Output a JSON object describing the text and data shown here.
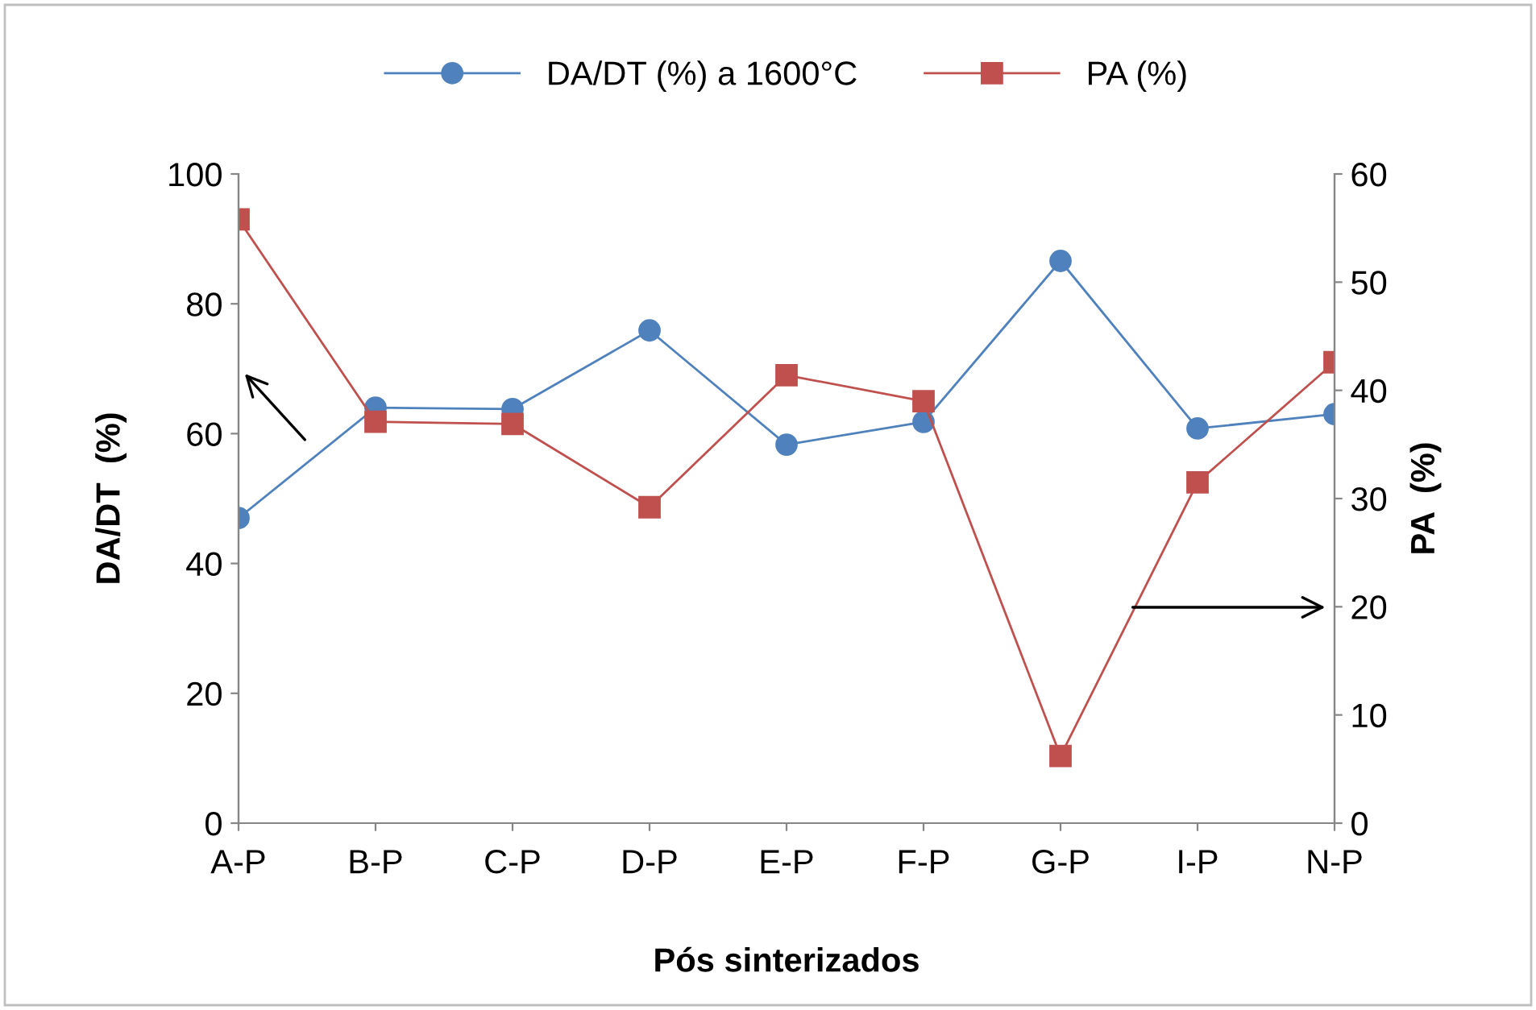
{
  "chart_data": {
    "type": "line",
    "xlabel": "Pós sinterizados",
    "ylabel": "DA/DT  (%)",
    "y2label": "PA  (%)",
    "categories": [
      "A-P",
      "B-P",
      "C-P",
      "D-P",
      "E-P",
      "F-P",
      "G-P",
      "I-P",
      "N-P"
    ],
    "series": [
      {
        "name": "DA/DT (%) a 1600°C",
        "color": "#4f81bd",
        "marker": "circle",
        "values": [
          47,
          64,
          63.8,
          75.9,
          58.3,
          61.8,
          86.6,
          60.8,
          63
        ]
      },
      {
        "name": "PA (%)",
        "color": "#c0504d",
        "marker": "square",
        "axis": "y2",
        "values": [
          55.8,
          37.1,
          36.9,
          29.2,
          41.4,
          39,
          6.2,
          31.5,
          42.6
        ]
      }
    ],
    "ylim": [
      0,
      100
    ],
    "yticks": [
      0,
      20,
      40,
      60,
      80,
      100
    ],
    "y2lim": [
      0,
      60
    ],
    "y2ticks": [
      0,
      10,
      20,
      30,
      40,
      50,
      60
    ],
    "grid": false,
    "legend": "top"
  }
}
